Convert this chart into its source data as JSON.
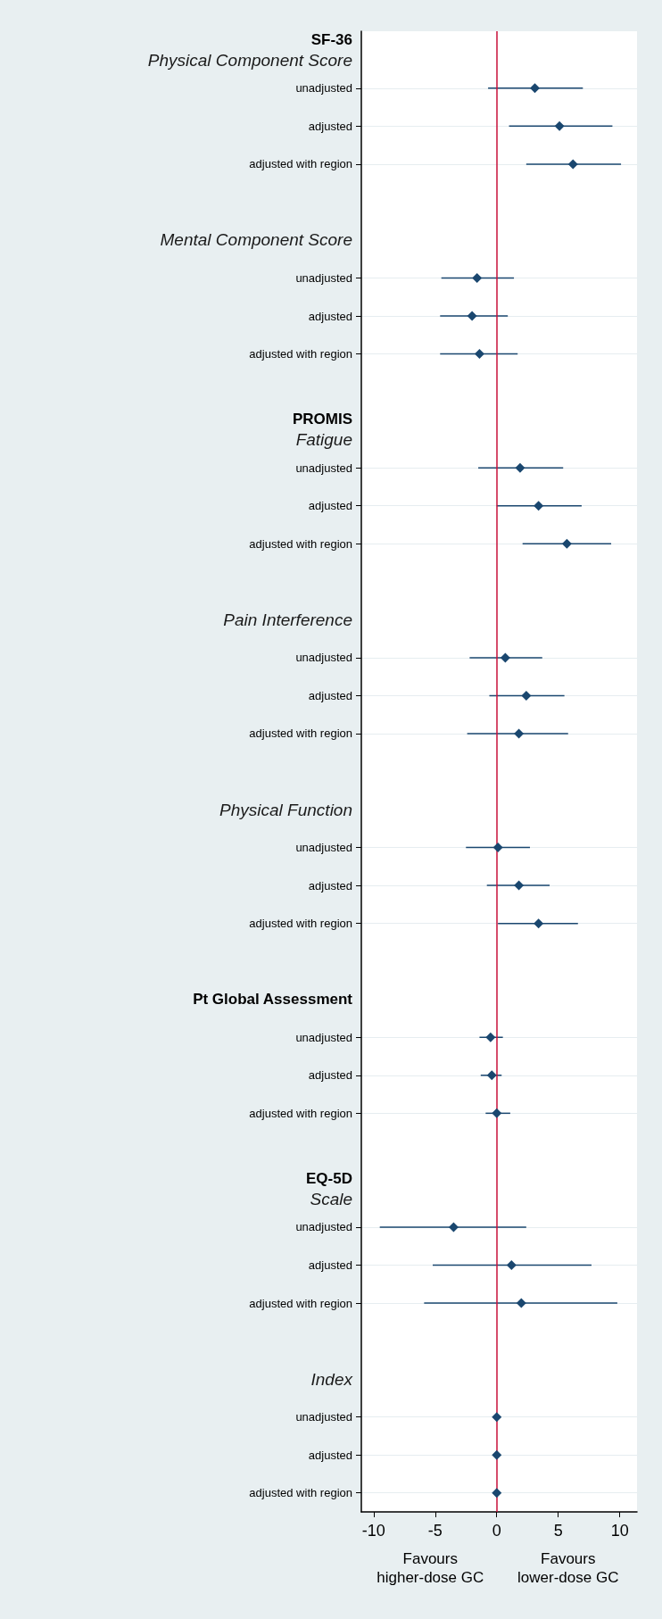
{
  "chart_data": {
    "type": "scatter",
    "orientation": "horizontal",
    "color": "#1a476f",
    "marker": "diamond",
    "grid": "y",
    "categories": [
      "SF-36\nPhysical Component Score",
      "unadjusted",
      "adjusted",
      "adjusted with region",
      null,
      "Mental Component Score",
      "unadjusted",
      "adjusted",
      "adjusted with region",
      null,
      "PROMIS\nFatigue",
      "unadjusted",
      "adjusted",
      "adjusted with region",
      null,
      "Pain Interference",
      "unadjusted",
      "adjusted",
      "adjusted with region",
      null,
      "Physical Function",
      "unadjusted",
      "adjusted",
      "adjusted with region",
      null,
      "Pt Global Assessment",
      "unadjusted",
      "adjusted",
      "adjusted with region",
      null,
      "EQ-5D\nScale",
      "unadjusted",
      "adjusted",
      "adjusted with region",
      null,
      "Index",
      "unadjusted",
      "adjusted",
      "adjusted with region"
    ],
    "values": [
      null,
      3.1,
      5.1,
      6.2,
      null,
      null,
      -1.6,
      -2.0,
      -1.4,
      null,
      null,
      1.9,
      3.4,
      5.7,
      null,
      null,
      0.7,
      2.4,
      1.8,
      null,
      null,
      0.1,
      1.8,
      3.4,
      null,
      null,
      -0.5,
      -0.4,
      0,
      null,
      null,
      -3.5,
      1.2,
      2.0,
      null,
      null,
      0,
      0,
      0
    ],
    "errors": [
      null,
      [
        -0.7,
        7.0
      ],
      [
        1.0,
        9.4
      ],
      [
        2.4,
        10.1
      ],
      null,
      null,
      [
        -4.5,
        1.4
      ],
      [
        -4.6,
        0.9
      ],
      [
        -4.6,
        1.7
      ],
      null,
      null,
      [
        -1.5,
        5.4
      ],
      [
        0,
        6.9
      ],
      [
        2.1,
        9.3
      ],
      null,
      null,
      [
        -2.2,
        3.7
      ],
      [
        -0.6,
        5.5
      ],
      [
        -2.4,
        5.8
      ],
      null,
      null,
      [
        -2.5,
        2.7
      ],
      [
        -0.8,
        4.3
      ],
      [
        0.1,
        6.6
      ],
      null,
      null,
      [
        -1.4,
        0.5
      ],
      [
        -1.3,
        0.4
      ],
      [
        -0.9,
        1.1
      ],
      null,
      null,
      [
        -9.5,
        2.4
      ],
      [
        -5.2,
        7.7
      ],
      [
        -5.9,
        9.8
      ],
      null,
      null,
      null,
      null,
      null
    ],
    "xlim": [
      -11,
      11.4
    ],
    "xticks": [
      -10,
      -5,
      0,
      5,
      10
    ],
    "ref_lines": [
      {
        "axis": "x",
        "value": 0,
        "color": "#c8103a"
      }
    ],
    "annotations": [
      "Favours\nhigher-dose GC",
      "Favours\nlower-dose GC"
    ]
  }
}
